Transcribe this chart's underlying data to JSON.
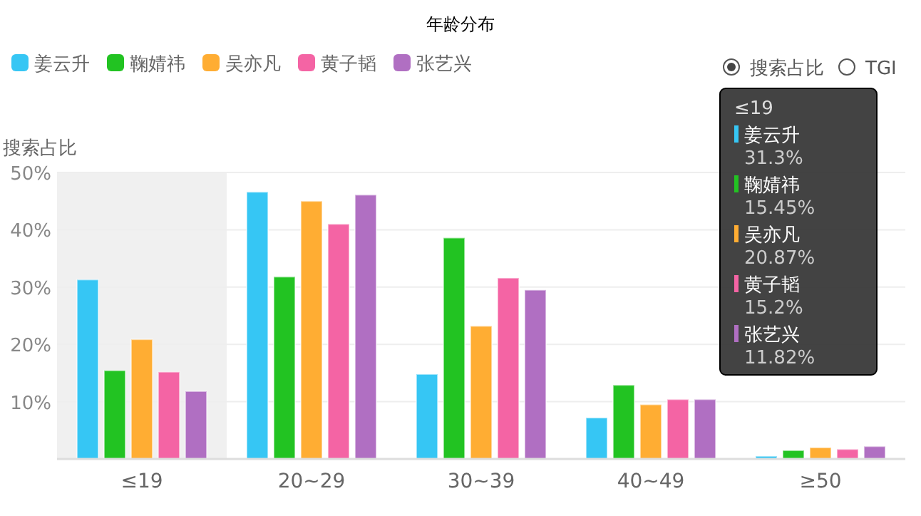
{
  "chart_data": {
    "type": "bar",
    "title": "年龄分布",
    "ylabel": "搜索占比",
    "categories": [
      "≤19",
      "20~29",
      "30~39",
      "40~49",
      "≥50"
    ],
    "series": [
      {
        "name": "姜云升",
        "color": "#36c6f4",
        "values": [
          31.3,
          46.6,
          14.8,
          7.2,
          0.5
        ]
      },
      {
        "name": "鞠婧祎",
        "color": "#22c322",
        "values": [
          15.45,
          31.8,
          38.6,
          12.9,
          1.5
        ]
      },
      {
        "name": "吴亦凡",
        "color": "#ffad33",
        "values": [
          20.87,
          45.0,
          23.2,
          9.5,
          2.0
        ]
      },
      {
        "name": "黄子韬",
        "color": "#f464a4",
        "values": [
          15.2,
          41.0,
          31.6,
          10.4,
          1.7
        ]
      },
      {
        "name": "张艺兴",
        "color": "#b06fc2",
        "values": [
          11.82,
          46.1,
          29.5,
          10.4,
          2.2
        ]
      }
    ],
    "ylim": [
      0,
      50
    ],
    "yticks": [
      {
        "value": 10,
        "label": "10%"
      },
      {
        "value": 20,
        "label": "20%"
      },
      {
        "value": 30,
        "label": "30%"
      },
      {
        "value": 40,
        "label": "40%"
      },
      {
        "value": 50,
        "label": "50%"
      }
    ],
    "grid": "y",
    "legend": "top left",
    "bands": [
      {
        "axis": "x",
        "from": "≤19",
        "to": "≤19",
        "color": "#f0f0f0"
      }
    ],
    "annotations": [
      "≤19",
      "姜云升",
      "31.3%",
      "鞠婧祎",
      "15.45%",
      "吴亦凡",
      "20.87%",
      "黄子韬",
      "15.2%",
      "张艺兴",
      "11.82%",
      "搜索占比",
      "TGI"
    ]
  }
}
